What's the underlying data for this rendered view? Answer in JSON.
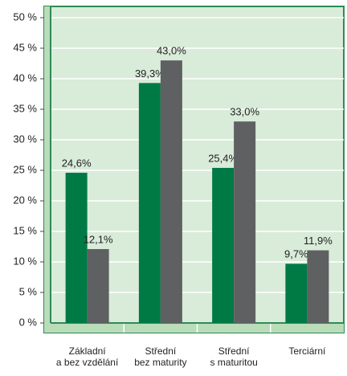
{
  "chart_data": {
    "type": "bar",
    "categories": [
      "Základní\na bez vzdělání",
      "Střední\nbez maturity",
      "Střední\ns maturitou",
      "Terciární"
    ],
    "series": [
      {
        "color": "#007a45",
        "values": [
          24.6,
          39.3,
          25.4,
          9.7
        ],
        "value_labels": [
          "24,6%",
          "39,3%",
          "25,4%",
          "9,7%"
        ]
      },
      {
        "color": "#5f6062",
        "values": [
          12.1,
          43.0,
          33.0,
          11.9
        ],
        "value_labels": [
          "12,1%",
          "43,0%",
          "33,0%",
          "11,9%"
        ]
      }
    ],
    "ylim": [
      0,
      50
    ],
    "yticks": [
      {
        "value": 0,
        "label": "0 %"
      },
      {
        "value": 5,
        "label": "5 %"
      },
      {
        "value": 10,
        "label": "10 %"
      },
      {
        "value": 15,
        "label": "15 %"
      },
      {
        "value": 20,
        "label": "20 %"
      },
      {
        "value": 25,
        "label": "25 %"
      },
      {
        "value": 30,
        "label": "30 %"
      },
      {
        "value": 35,
        "label": "35 %"
      },
      {
        "value": 40,
        "label": "40 %"
      },
      {
        "value": 45,
        "label": "45 %"
      },
      {
        "value": 50,
        "label": "50 %"
      }
    ],
    "grid": true
  }
}
